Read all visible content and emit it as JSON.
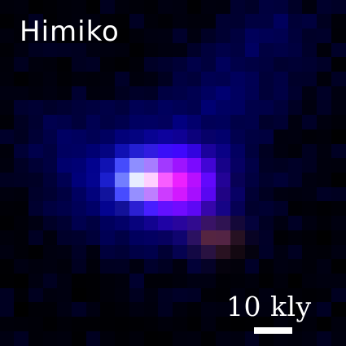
{
  "image": {
    "object_label": "Himiko",
    "scale_label": "10 kly",
    "colors": {
      "background": "#000000",
      "halo": "#1a1aff",
      "core": "#cfefff",
      "emission": "#e040ff",
      "text": "#ffffff"
    }
  }
}
